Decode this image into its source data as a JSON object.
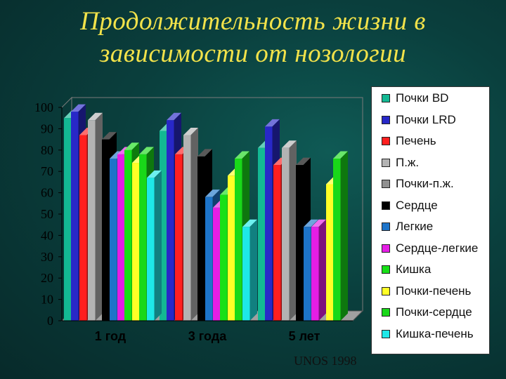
{
  "slide": {
    "title_line1": "Продолжительность жизни в",
    "title_line2": "зависимости от нозологии",
    "source": "UNOS 1998"
  },
  "chart_data": {
    "type": "bar",
    "categories": [
      "1 год",
      "3 года",
      "5 лет"
    ],
    "ylim": [
      0,
      100
    ],
    "yticks": [
      0,
      10,
      20,
      30,
      40,
      50,
      60,
      70,
      80,
      90,
      100
    ],
    "grid": false,
    "legend_position": "right",
    "series": [
      {
        "name": "Почки BD",
        "color": "#13b893",
        "values": [
          95,
          89,
          81
        ]
      },
      {
        "name": "Почки LRD",
        "color": "#2828c8",
        "values": [
          98,
          94,
          91
        ]
      },
      {
        "name": "Печень",
        "color": "#ff1f1f",
        "values": [
          87,
          78,
          73
        ]
      },
      {
        "name": "П.ж.",
        "color": "#b3b3b3",
        "values": [
          94,
          87,
          81
        ]
      },
      {
        "name": "Почки-п.ж.",
        "color": "#909090",
        "values": [
          null,
          null,
          null
        ]
      },
      {
        "name": "Сердце",
        "color": "#000000",
        "values": [
          85,
          77,
          73
        ]
      },
      {
        "name": "Легкие",
        "color": "#1d74c9",
        "values": [
          76,
          58,
          44
        ]
      },
      {
        "name": "Сердце-легкие",
        "color": "#e51ee5",
        "values": [
          78,
          53,
          44
        ]
      },
      {
        "name": "Кишка",
        "color": "#17e017",
        "values": [
          80,
          59,
          null
        ]
      },
      {
        "name": "Почки-печень",
        "color": "#ffff26",
        "values": [
          74,
          68,
          64
        ]
      },
      {
        "name": "Почки-сердце",
        "color": "#19d819",
        "values": [
          78,
          76,
          76
        ]
      },
      {
        "name": "Кишка-печень",
        "color": "#1ee8e8",
        "values": [
          67,
          44,
          null
        ]
      }
    ]
  }
}
